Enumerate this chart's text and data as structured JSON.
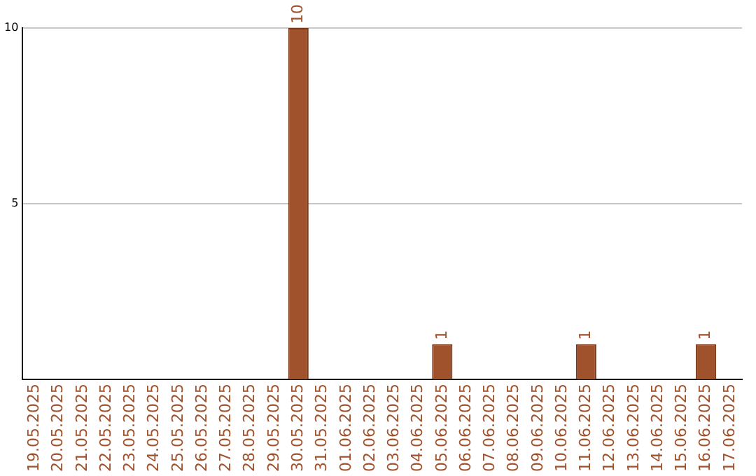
{
  "chart_data": {
    "type": "bar",
    "categories": [
      "19.05.2025",
      "20.05.2025",
      "21.05.2025",
      "22.05.2025",
      "23.05.2025",
      "24.05.2025",
      "25.05.2025",
      "26.05.2025",
      "27.05.2025",
      "28.05.2025",
      "29.05.2025",
      "30.05.2025",
      "31.05.2025",
      "01.06.2025",
      "02.06.2025",
      "03.06.2025",
      "04.06.2025",
      "05.06.2025",
      "06.06.2025",
      "07.06.2025",
      "08.06.2025",
      "09.06.2025",
      "10.06.2025",
      "11.06.2025",
      "12.06.2025",
      "13.06.2025",
      "14.06.2025",
      "15.06.2025",
      "16.06.2025",
      "17.06.2025"
    ],
    "values": [
      0,
      0,
      0,
      0,
      0,
      0,
      0,
      0,
      0,
      0,
      0,
      10,
      0,
      0,
      0,
      0,
      0,
      1,
      0,
      0,
      0,
      0,
      0,
      1,
      0,
      0,
      0,
      0,
      1,
      0
    ],
    "value_labels": [
      null,
      null,
      null,
      null,
      null,
      null,
      null,
      null,
      null,
      null,
      null,
      "10",
      null,
      null,
      null,
      null,
      null,
      "1",
      null,
      null,
      null,
      null,
      null,
      "1",
      null,
      null,
      null,
      null,
      "1",
      null
    ],
    "color": "#a0522d",
    "ylim": [
      0,
      10
    ],
    "yticks": [
      5,
      10
    ],
    "grid": "y",
    "legend": false
  }
}
